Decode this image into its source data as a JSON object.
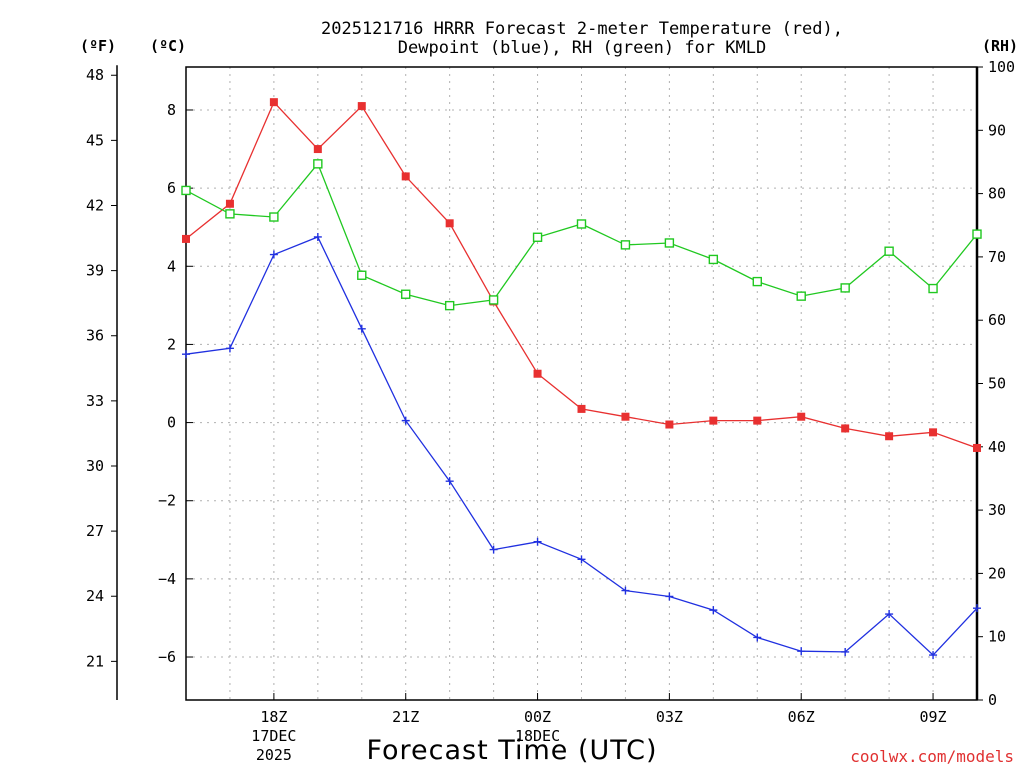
{
  "title_line1": "2025121716 HRRR Forecast 2-meter Temperature (red),",
  "title_line2": "Dewpoint (blue), RH (green) for KMLD",
  "units": {
    "left_outer": "(ºF)",
    "left_inner": "(ºC)",
    "right": "(RH)"
  },
  "xlabel": "Forecast Time (UTC)",
  "credit": "coolwx.com/models",
  "colors": {
    "temperature": "#e83030",
    "dewpoint": "#2030e0",
    "rh": "#20c820",
    "grid": "#b0b0b0"
  },
  "chart_data": {
    "type": "line",
    "title": "2025121716 HRRR Forecast 2-meter Temperature (red), Dewpoint (blue), RH (green) for KMLD",
    "xlabel": "Forecast Time (UTC)",
    "x": [
      16,
      17,
      18,
      19,
      20,
      21,
      22,
      23,
      24,
      25,
      26,
      27,
      28,
      29,
      30,
      31,
      32,
      33,
      34
    ],
    "xlim": [
      16,
      34
    ],
    "xticks": [
      {
        "x": 18,
        "label": "18Z",
        "sub1": "17DEC",
        "sub2": "2025"
      },
      {
        "x": 21,
        "label": "21Z",
        "sub1": "",
        "sub2": ""
      },
      {
        "x": 24,
        "label": "00Z",
        "sub1": "18DEC",
        "sub2": ""
      },
      {
        "x": 27,
        "label": "03Z",
        "sub1": "",
        "sub2": ""
      },
      {
        "x": 30,
        "label": "06Z",
        "sub1": "",
        "sub2": ""
      },
      {
        "x": 33,
        "label": "09Z",
        "sub1": "",
        "sub2": ""
      }
    ],
    "celsius_axis": {
      "label": "(ºC)",
      "ylim": [
        -7.1,
        9.1
      ],
      "ticks": [
        8,
        6,
        4,
        2,
        0,
        -2,
        -4,
        -6
      ]
    },
    "fahrenheit_axis": {
      "label": "(ºF)",
      "ticks": [
        48,
        45,
        42,
        39,
        36,
        33,
        30,
        27,
        24,
        21
      ]
    },
    "rh_axis": {
      "label": "(RH)",
      "ylim": [
        0,
        100
      ],
      "ticks": [
        100,
        90,
        80,
        70,
        60,
        50,
        40,
        30,
        20,
        10,
        0
      ]
    },
    "series": [
      {
        "name": "Temperature",
        "axis": "celsius",
        "color": "#e83030",
        "marker": "filled-square",
        "values": [
          4.7,
          5.6,
          8.2,
          7.0,
          8.1,
          6.3,
          5.1,
          3.1,
          1.25,
          0.35,
          0.15,
          -0.05,
          0.05,
          0.05,
          0.15,
          -0.15,
          -0.35,
          -0.25,
          -0.65
        ]
      },
      {
        "name": "Dewpoint",
        "axis": "celsius",
        "color": "#2030e0",
        "marker": "plus",
        "values": [
          1.75,
          1.9,
          4.3,
          4.75,
          2.4,
          0.05,
          -1.5,
          -3.25,
          -3.05,
          -3.5,
          -4.3,
          -4.45,
          -4.8,
          -5.5,
          -5.85,
          -5.87,
          -4.9,
          -5.95,
          -4.75
        ]
      },
      {
        "name": "RH",
        "axis": "rh",
        "color": "#20c820",
        "marker": "open-square",
        "values": [
          80.5,
          76.8,
          76.3,
          84.7,
          67.1,
          64.1,
          62.3,
          63.2,
          73.1,
          75.2,
          71.9,
          72.2,
          69.6,
          66.1,
          63.8,
          65.1,
          70.9,
          65.0,
          73.6
        ]
      }
    ]
  }
}
